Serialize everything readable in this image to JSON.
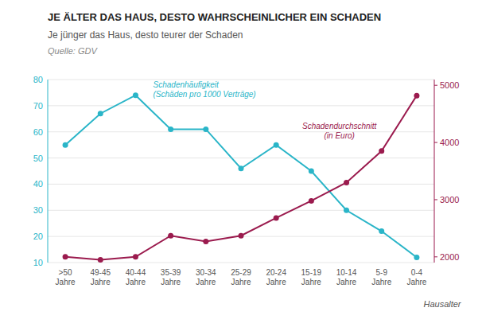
{
  "chart_data": {
    "type": "line",
    "title": "JE ÄLTER DAS HAUS, DESTO WAHRSCHEINLICHER EIN SCHADEN",
    "subtitle": "Je jünger das Haus, desto teurer der Schaden",
    "source": "Quelle: GDV",
    "x_label": "Hausalter",
    "annotations": [
      "Schadenhäufigkeit\n(Schäden pro 1000 Verträge)",
      "Schadendurchschnitt\n(in Euro)"
    ],
    "categories": [
      ">50\nJahre",
      "49-45\nJahre",
      "40-44\nJahre",
      "35-39\nJahre",
      "30-34\nJahre",
      "25-29\nJahre",
      "20-24\nJahre",
      "15-19\nJahre",
      "10-14\nJahre",
      "5-9\nJahre",
      "0-4\nJahre"
    ],
    "series": [
      {
        "color": "#2ab5c8",
        "marker": "circle",
        "values": [
          55,
          67,
          74,
          61,
          61,
          46,
          55,
          45,
          30,
          22,
          12
        ]
      },
      {
        "color": "#9b1b4e",
        "marker": "circle",
        "axis": "y2",
        "values": [
          2000,
          1950,
          2000,
          2370,
          2270,
          2370,
          2680,
          2980,
          3300,
          3850,
          4820
        ]
      }
    ],
    "ylim": [
      10,
      80
    ],
    "yticks": [
      10,
      20,
      30,
      40,
      50,
      60,
      70,
      80
    ],
    "y2lim": [
      1900,
      5100
    ],
    "y2ticks": [
      2000,
      3000,
      4000,
      5000
    ],
    "grid": true
  }
}
